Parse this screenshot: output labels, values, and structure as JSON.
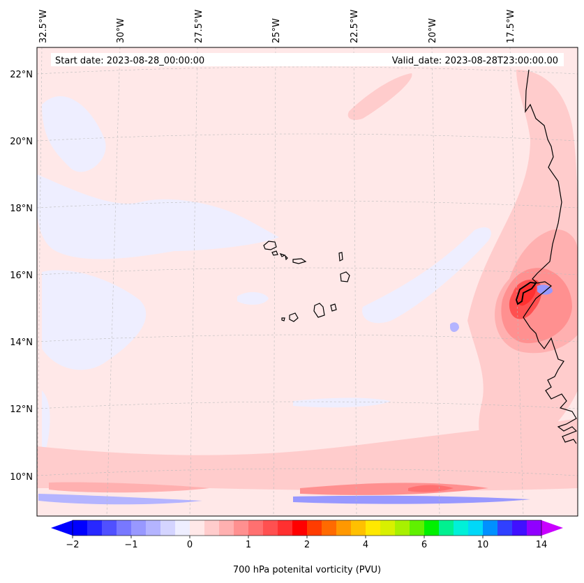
{
  "header": {
    "start_date": "Start date: 2023-08-28_00:00:00",
    "valid_date": "Valid_date: 2023-08-28T23:00:00.00"
  },
  "axes": {
    "lon_labels": [
      "32.5°W",
      "30°W",
      "27.5°W",
      "25°W",
      "22.5°W",
      "20°W",
      "17.5°W"
    ],
    "lat_labels": [
      "22°N",
      "20°N",
      "18°N",
      "16°N",
      "14°N",
      "12°N",
      "10°N"
    ]
  },
  "colorbar": {
    "label": "700 hPa potenital vorticity (PVU)",
    "ticks": [
      "−2",
      "−1",
      "0",
      "1",
      "2",
      "4",
      "6",
      "10",
      "14"
    ],
    "colors": [
      "#0000ff",
      "#2828ff",
      "#5050ff",
      "#7878ff",
      "#9898ff",
      "#b4b4ff",
      "#d4d4ff",
      "#eeeeff",
      "#ffe8e8",
      "#ffcccc",
      "#ffb0b0",
      "#ff9090",
      "#ff7070",
      "#ff5050",
      "#ff3030",
      "#ff0000",
      "#ff3c00",
      "#ff6a00",
      "#ff9800",
      "#ffc000",
      "#ffe800",
      "#d8f000",
      "#a8f000",
      "#60f000",
      "#00f000",
      "#00f090",
      "#00f0d8",
      "#00d8f8",
      "#0090ff",
      "#3040ff",
      "#4010ff",
      "#9000ff"
    ],
    "min_color": "#0000ff",
    "max_color": "#c800ff"
  },
  "colors": {
    "background_field": "#ffe8e8",
    "weak_negative": "#eeeeff",
    "coastline": "#000000"
  }
}
